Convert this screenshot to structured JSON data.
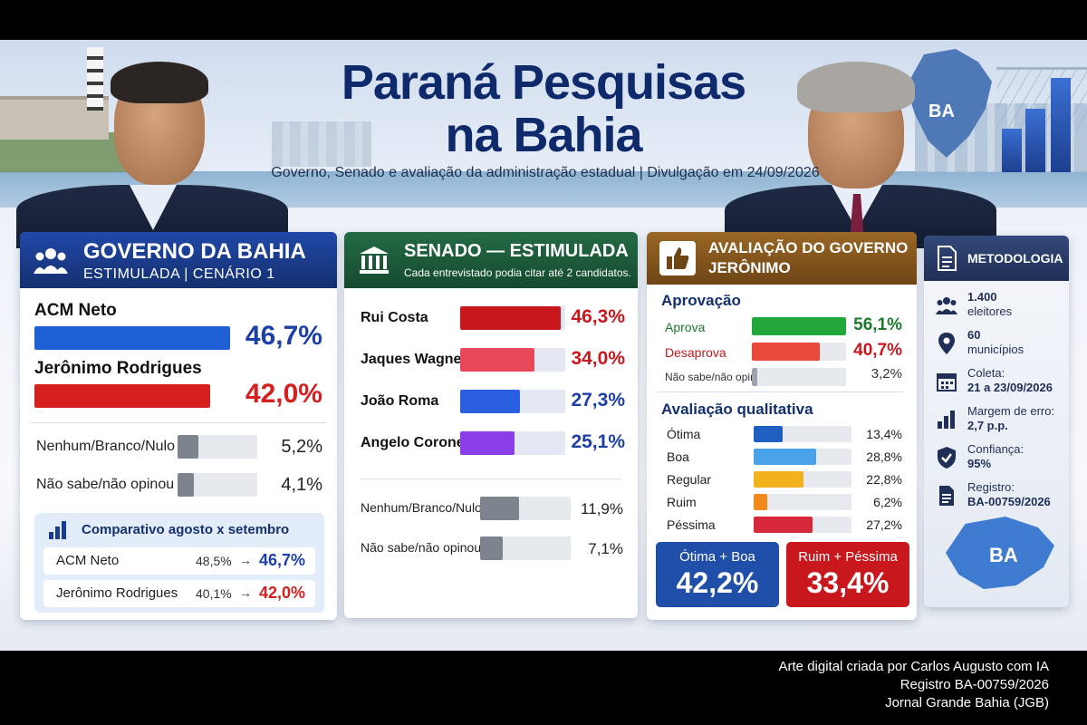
{
  "title_line1": "Paraná Pesquisas",
  "title_line2": "na Bahia",
  "subtitle": "Governo, Senado e avaliação da administração estadual | Divulgação em 24/09/2026",
  "map_label": "BA",
  "governo": {
    "title": "GOVERNO DA BAHIA",
    "subtitle": "ESTIMULADA | CENÁRIO 1",
    "candidates": [
      {
        "name": "ACM Neto",
        "value": 46.7,
        "label": "46,7%",
        "color": "#1f5fd6"
      },
      {
        "name": "Jerônimo Rodrigues",
        "value": 42.0,
        "label": "42,0%",
        "color": "#d61f1f"
      }
    ],
    "others": [
      {
        "name": "Nenhum/Branco/Nulo",
        "value": 5.2,
        "label": "5,2%"
      },
      {
        "name": "Não sabe/não opinou",
        "value": 4.1,
        "label": "4,1%"
      }
    ],
    "comparativo": {
      "title": "Comparativo agosto x setembro",
      "rows": [
        {
          "name": "ACM Neto",
          "before": "48,5%",
          "arrow": "→",
          "after": "46,7%",
          "color": "#1f3fa8"
        },
        {
          "name": "Jerônimo Rodrigues",
          "before": "40,1%",
          "arrow": "→",
          "after": "42,0%",
          "color": "#d61f1f"
        }
      ]
    }
  },
  "senado": {
    "title": "SENADO — ESTIMULADA",
    "note": "Cada entrevistado podia citar até 2 candidatos.",
    "candidates": [
      {
        "name": "Rui Costa",
        "value": 46.3,
        "label": "46,3%",
        "color": "#c8181e",
        "labelColor": "#c8181e"
      },
      {
        "name": "Jaques Wagner",
        "value": 34.0,
        "label": "34,0%",
        "color": "#e8495a",
        "labelColor": "#c8181e"
      },
      {
        "name": "João Roma",
        "value": 27.3,
        "label": "27,3%",
        "color": "#2a5fe0",
        "labelColor": "#1f3fa8"
      },
      {
        "name": "Angelo Coronel",
        "value": 25.1,
        "label": "25,1%",
        "color": "#8a3fe6",
        "labelColor": "#1f3fa8"
      }
    ],
    "others": [
      {
        "name": "Nenhum/Branco/Nulo",
        "value": 11.9,
        "label": "11,9%"
      },
      {
        "name": "Não sabe/não opinou",
        "value": 7.1,
        "label": "7,1%"
      }
    ]
  },
  "avaliacao": {
    "title_line1": "AVALIAÇÃO DO GOVERNO",
    "title_line2": "JERÔNIMO",
    "aprovacao_title": "Aprovação",
    "aprovacao": [
      {
        "name": "Aprova",
        "value": 56.1,
        "label": "56,1%",
        "color": "#22a83a",
        "textColor": "#1b7a2c"
      },
      {
        "name": "Desaprova",
        "value": 40.7,
        "label": "40,7%",
        "color": "#e8493a",
        "textColor": "#c8181e"
      },
      {
        "name": "Não sabe/não opinou",
        "value": 3.2,
        "label": "3,2%",
        "color": "#9aa3ae",
        "textColor": "#333333"
      }
    ],
    "qualitativa_title": "Avaliação qualitativa",
    "qualitativa": [
      {
        "name": "Ótima",
        "value": 13.4,
        "label": "13,4%",
        "color": "#1f5fbf"
      },
      {
        "name": "Boa",
        "value": 28.8,
        "label": "28,8%",
        "color": "#4aa3e8"
      },
      {
        "name": "Regular",
        "value": 22.8,
        "label": "22,8%",
        "color": "#f2b21b"
      },
      {
        "name": "Ruim",
        "value": 6.2,
        "label": "6,2%",
        "color": "#f28a1b"
      },
      {
        "name": "Péssima",
        "value": 27.2,
        "label": "27,2%",
        "color": "#d6283a"
      }
    ],
    "otima_boa_label": "Ótima + Boa",
    "otima_boa_value": "42,2%",
    "ruim_pessima_label": "Ruim + Péssima",
    "ruim_pessima_value": "33,4%"
  },
  "metodologia": {
    "title": "METODOLOGIA",
    "items": [
      {
        "icon": "people-icon",
        "line1": "1.400",
        "line2": "eleitores"
      },
      {
        "icon": "location-pin-icon",
        "line1": "60",
        "line2": "municípios"
      },
      {
        "icon": "calendar-icon",
        "line1": "Coleta:",
        "line2": "21 a 23/09/2026"
      },
      {
        "icon": "bar-chart-icon",
        "line1": "Margem de erro:",
        "line2": "2,7 p.p."
      },
      {
        "icon": "shield-check-icon",
        "line1": "Confiança:",
        "line2": "95%"
      },
      {
        "icon": "document-icon",
        "line1": "Registro:",
        "line2": "BA-00759/2026"
      }
    ],
    "map_label": "BA"
  },
  "credits": {
    "line1": "Arte digital criada por Carlos Augusto com IA",
    "line2": "Registro BA-00759/2026",
    "line3": "Jornal Grande Bahia (JGB)"
  },
  "colors": {
    "governo_header": "#1a3c8f",
    "senado_header": "#1e5a3a",
    "avaliacao_header": "#8a5a1e",
    "metodologia_header": "#2a3f6b",
    "otima_boa_bg": "#1f4fa8",
    "ruim_pessima_bg": "#c8181e"
  }
}
